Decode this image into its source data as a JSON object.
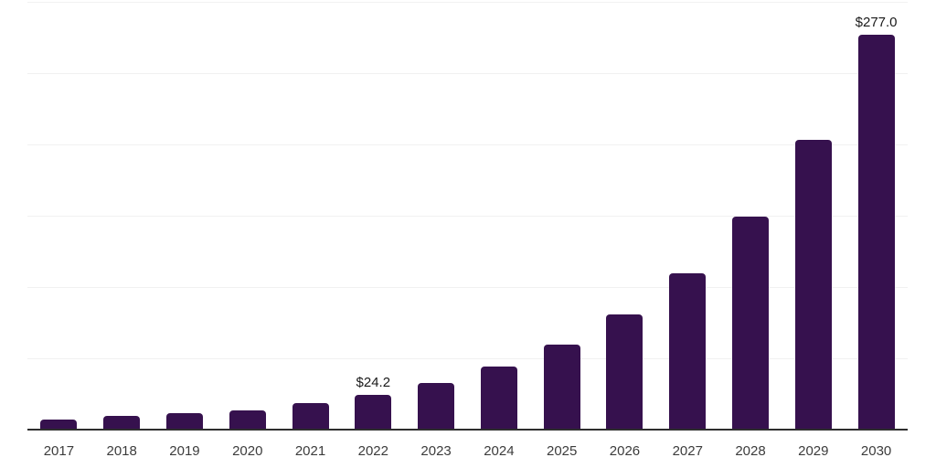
{
  "chart_data": {
    "type": "bar",
    "title": "",
    "xlabel": "",
    "ylabel": "",
    "categories": [
      "2017",
      "2018",
      "2019",
      "2020",
      "2021",
      "2022",
      "2023",
      "2024",
      "2025",
      "2026",
      "2027",
      "2028",
      "2029",
      "2030"
    ],
    "values": [
      6.9,
      9.3,
      11.3,
      13.6,
      18.4,
      24.2,
      33.0,
      44.2,
      59.5,
      80.9,
      109.3,
      149.5,
      203.5,
      277.0
    ],
    "data_labels": {
      "2022": "$24.2",
      "2030": "$277.0"
    },
    "unit_prefix": "$",
    "ylim": [
      0,
      300
    ],
    "gridline_step": 50,
    "grid": true,
    "legend": false,
    "colors": {
      "bar": "#36114E",
      "axis": "#2E2E2E",
      "gridline": "#F1F1F1",
      "tick_label": "#3C3C3C",
      "data_label": "#1A1A1A",
      "background": "#FFFFFF"
    }
  }
}
